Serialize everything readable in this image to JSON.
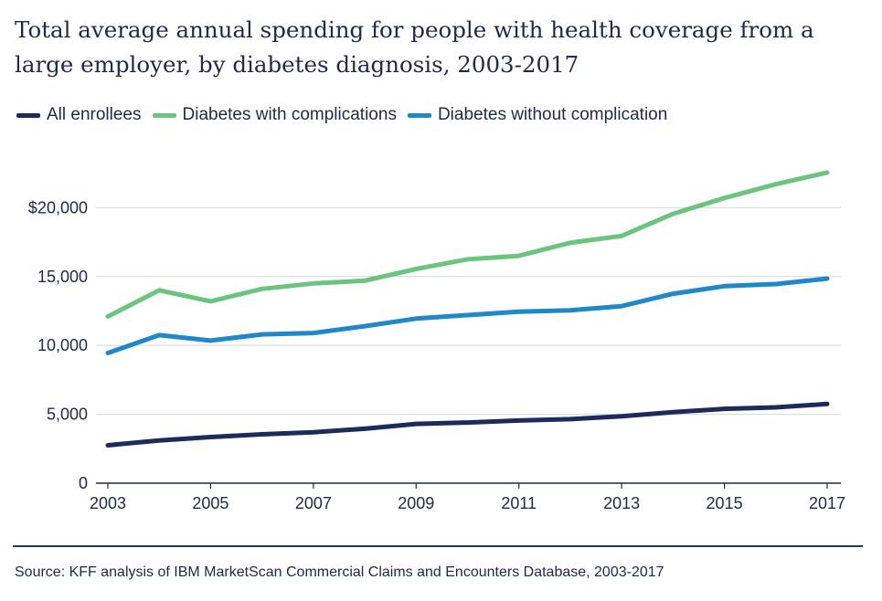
{
  "chart_data": {
    "type": "line",
    "title": "Total average annual spending for people with health coverage from a large employer, by diabetes diagnosis, 2003-2017",
    "xlabel": "",
    "ylabel": "",
    "x": [
      2003,
      2004,
      2005,
      2006,
      2007,
      2008,
      2009,
      2010,
      2011,
      2012,
      2013,
      2014,
      2015,
      2016,
      2017
    ],
    "xticks": [
      2003,
      2005,
      2007,
      2009,
      2011,
      2013,
      2015,
      2017
    ],
    "xtick_labels": [
      "2003",
      "2005",
      "2007",
      "2009",
      "2011",
      "2013",
      "2015",
      "2017"
    ],
    "yticks": [
      0,
      5000,
      10000,
      15000,
      20000
    ],
    "ytick_labels": [
      "0",
      "5,000",
      "10,000",
      "15,000",
      "$20,000"
    ],
    "ylim": [
      0,
      24000
    ],
    "grid": "horizontal",
    "legend_position": "top-left",
    "series": [
      {
        "name": "All enrollees",
        "color": "#1c2b5a",
        "values": [
          2750,
          3100,
          3350,
          3550,
          3700,
          3950,
          4300,
          4400,
          4550,
          4650,
          4850,
          5150,
          5400,
          5500,
          5750
        ]
      },
      {
        "name": "Diabetes with complications",
        "color": "#6cc47f",
        "values": [
          12100,
          14000,
          13200,
          14100,
          14500,
          14700,
          15550,
          16250,
          16500,
          17450,
          17950,
          19550,
          20700,
          21700,
          22550
        ]
      },
      {
        "name": "Diabetes without complication",
        "color": "#1f88c9",
        "values": [
          9450,
          10750,
          10350,
          10800,
          10900,
          11400,
          11950,
          12200,
          12450,
          12550,
          12850,
          13750,
          14300,
          14450,
          14850
        ]
      }
    ],
    "source": "Source: KFF analysis of IBM MarketScan Commercial Claims and Encounters Database, 2003-2017"
  }
}
